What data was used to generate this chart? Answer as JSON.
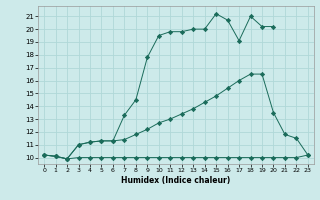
{
  "xlabel": "Humidex (Indice chaleur)",
  "bg_color": "#cdeaea",
  "grid_color": "#b0d8d8",
  "line_color": "#1a6b5a",
  "xlim": [
    -0.5,
    23.5
  ],
  "ylim": [
    9.5,
    21.8
  ],
  "xticks": [
    0,
    1,
    2,
    3,
    4,
    5,
    6,
    7,
    8,
    9,
    10,
    11,
    12,
    13,
    14,
    15,
    16,
    17,
    18,
    19,
    20,
    21,
    22,
    23
  ],
  "yticks": [
    10,
    11,
    12,
    13,
    14,
    15,
    16,
    17,
    18,
    19,
    20,
    21
  ],
  "line1_x": [
    0,
    1,
    2,
    3,
    4,
    5,
    6,
    7,
    8,
    9,
    10,
    11,
    12,
    13,
    14,
    15,
    16,
    17,
    18,
    19,
    20,
    21,
    22,
    23
  ],
  "line1_y": [
    10.2,
    10.1,
    9.9,
    10.0,
    10.0,
    10.0,
    10.0,
    10.0,
    10.0,
    10.0,
    10.0,
    10.0,
    10.0,
    10.0,
    10.0,
    10.0,
    10.0,
    10.0,
    10.0,
    10.0,
    10.0,
    10.0,
    10.0,
    10.2
  ],
  "line2_x": [
    0,
    1,
    2,
    3,
    4,
    5,
    6,
    7,
    8,
    9,
    10,
    11,
    12,
    13,
    14,
    15,
    16,
    17,
    18,
    19,
    20,
    21,
    22,
    23
  ],
  "line2_y": [
    10.2,
    10.1,
    9.9,
    11.0,
    11.2,
    11.3,
    11.3,
    11.4,
    11.8,
    12.2,
    12.7,
    13.0,
    13.4,
    13.8,
    14.3,
    14.8,
    15.4,
    16.0,
    16.5,
    16.5,
    13.5,
    11.8,
    11.5,
    10.2
  ],
  "line3_x": [
    0,
    1,
    2,
    3,
    4,
    5,
    6,
    7,
    8,
    9,
    10,
    11,
    12,
    13,
    14,
    15,
    16,
    17,
    18,
    19,
    20
  ],
  "line3_y": [
    10.2,
    10.1,
    9.9,
    11.0,
    11.2,
    11.3,
    11.3,
    13.3,
    14.5,
    17.8,
    19.5,
    19.8,
    19.8,
    20.0,
    20.0,
    21.2,
    20.7,
    19.1,
    21.0,
    20.2,
    20.2
  ]
}
